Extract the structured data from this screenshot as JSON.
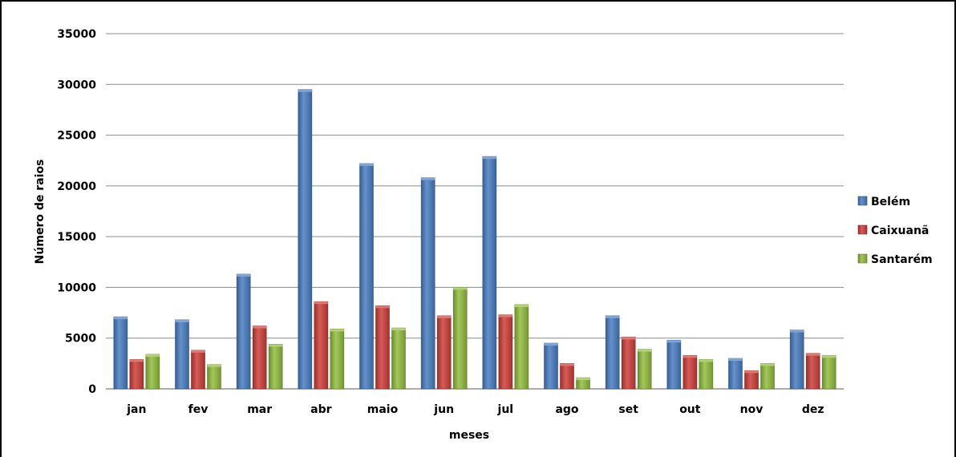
{
  "chart_data": {
    "type": "bar",
    "title": "",
    "xlabel": "meses",
    "ylabel": "Número de raios",
    "ylim": [
      0,
      35000
    ],
    "yticks": [
      0,
      5000,
      10000,
      15000,
      20000,
      25000,
      30000,
      35000
    ],
    "grid": true,
    "legend_position": "right",
    "categories": [
      "jan",
      "fev",
      "mar",
      "abr",
      "maio",
      "jun",
      "jul",
      "ago",
      "set",
      "out",
      "nov",
      "dez"
    ],
    "series": [
      {
        "name": "Belém",
        "color": "#4A7EC2",
        "values": [
          7100,
          6800,
          11300,
          29500,
          22200,
          20800,
          22900,
          4500,
          7200,
          4800,
          3000,
          5800
        ]
      },
      {
        "name": "Caixuanã",
        "color": "#CE3F3A",
        "values": [
          2900,
          3800,
          6200,
          8600,
          8200,
          7200,
          7300,
          2500,
          5100,
          3300,
          1800,
          3500
        ]
      },
      {
        "name": "Santarém",
        "color": "#93BD3F",
        "values": [
          3400,
          2400,
          4400,
          5900,
          6000,
          10000,
          8300,
          1100,
          3900,
          2900,
          2500,
          3300
        ]
      }
    ]
  }
}
